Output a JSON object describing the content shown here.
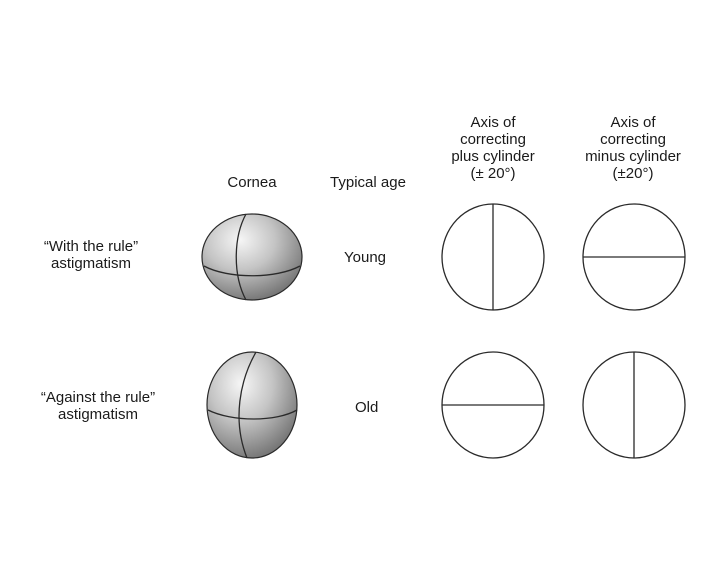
{
  "headers": {
    "cornea": "Cornea",
    "typical_age": "Typical age",
    "plus_cylinder": [
      "Axis of",
      "correcting",
      "plus cylinder",
      "(± 20°)"
    ],
    "minus_cylinder": [
      "Axis of",
      "correcting",
      "minus cylinder",
      "(±20°)"
    ]
  },
  "rows": [
    {
      "label": [
        "“With the rule”",
        "astigmatism"
      ],
      "age": "Young",
      "plus_axis": "vertical",
      "minus_axis": "horizontal"
    },
    {
      "label": [
        "“Against the rule”",
        "astigmatism"
      ],
      "age": "Old",
      "plus_axis": "horizontal",
      "minus_axis": "vertical"
    }
  ],
  "colors": {
    "line": "#2a2a2a",
    "cornea_light": "#f4f4f4",
    "cornea_dark": "#6e6e6e"
  }
}
